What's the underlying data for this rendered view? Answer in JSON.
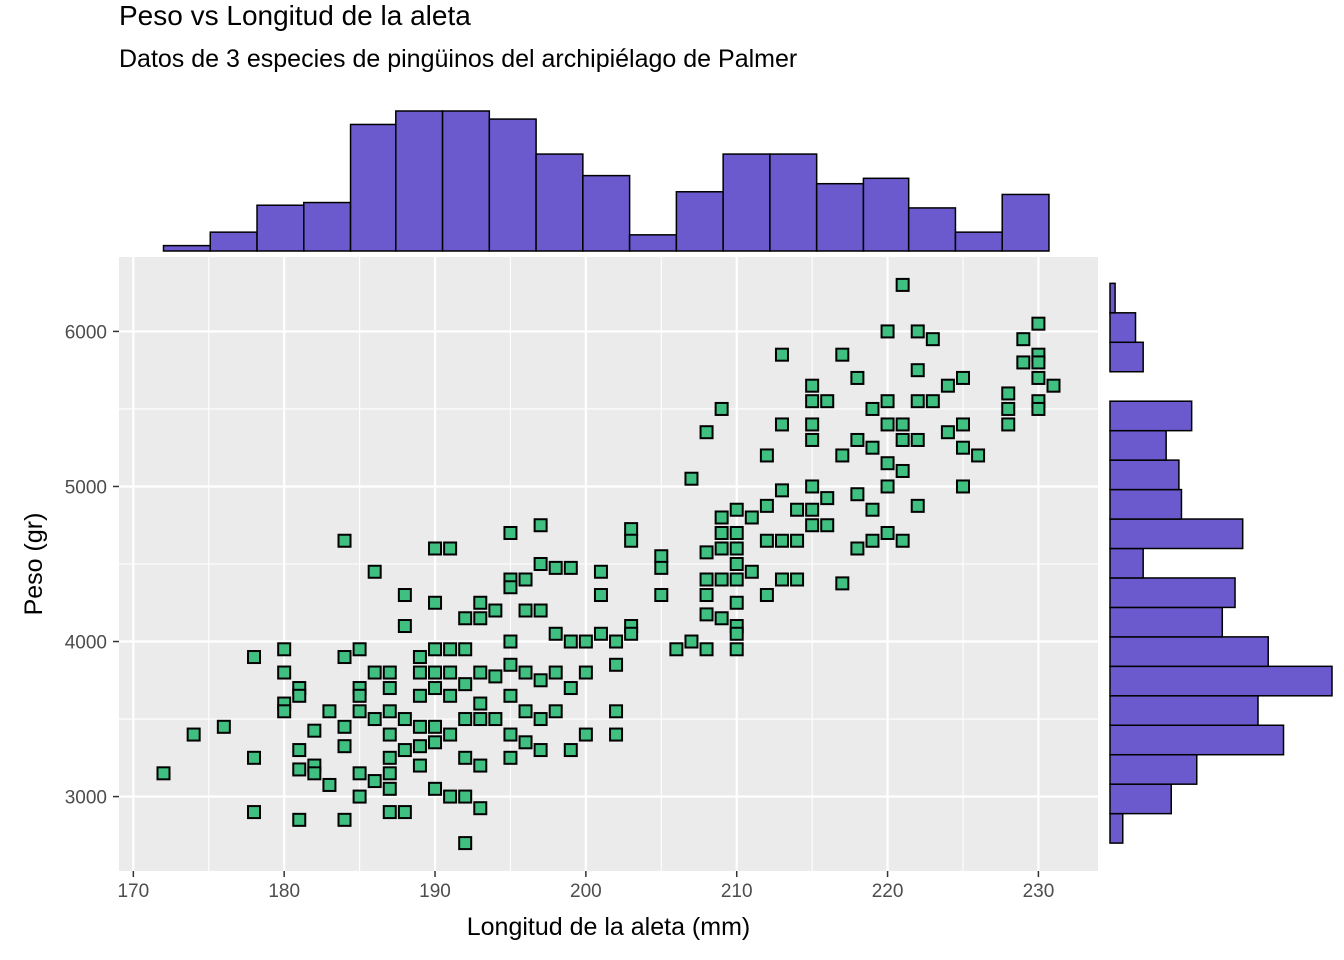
{
  "chart_data": {
    "type": "scatter",
    "title": "Peso vs Longitud de la aleta",
    "subtitle": "Datos de 3 especies de pingüinos del archipiélago de Palmer",
    "xlabel": "Longitud de la aleta (mm)",
    "ylabel": "Peso (gr)",
    "xlim": [
      169.05,
      233.95
    ],
    "ylim": [
      2520,
      6480
    ],
    "x_ticks": [
      "170",
      "180",
      "190",
      "200",
      "210",
      "220",
      "230"
    ],
    "y_ticks": [
      "3000",
      "4000",
      "5000",
      "6000"
    ],
    "grid": true,
    "colors": {
      "panel": "#EBEBEB",
      "grid": "#FFFFFF",
      "point_fill": "#3FBF80",
      "point_stroke": "#000000",
      "histogram_fill": "#6A5ACD",
      "histogram_stroke": "#000000",
      "axis_text": "#4D4D4D"
    },
    "marginal_x_histogram": {
      "bin_edges": [
        172.0,
        175.1,
        178.2,
        181.3,
        184.4,
        187.4,
        190.5,
        193.6,
        196.7,
        199.8,
        202.9,
        206.0,
        209.1,
        212.2,
        215.3,
        218.4,
        221.4,
        224.5,
        227.6,
        230.7
      ],
      "counts": [
        2,
        7,
        17,
        18,
        47,
        52,
        52,
        49,
        36,
        28,
        6,
        22,
        36,
        36,
        25,
        27,
        16,
        7,
        21
      ]
    },
    "marginal_y_histogram": {
      "bin_edges": [
        2700,
        2890,
        3080,
        3270,
        3460,
        3650,
        3840,
        4030,
        4220,
        4410,
        4600,
        4790,
        4980,
        5170,
        5360,
        5550,
        5740,
        5930,
        6120,
        6310
      ],
      "counts": [
        5,
        24,
        34,
        68,
        58,
        87,
        62,
        44,
        49,
        13,
        52,
        28,
        27,
        22,
        32,
        0,
        13,
        10,
        2
      ]
    },
    "points": [
      [
        172,
        3150
      ],
      [
        174,
        3400
      ],
      [
        176,
        3450
      ],
      [
        178,
        3900
      ],
      [
        178,
        3250
      ],
      [
        178,
        2900
      ],
      [
        180,
        3950
      ],
      [
        180,
        3800
      ],
      [
        180,
        3600
      ],
      [
        180,
        3550
      ],
      [
        181,
        3700
      ],
      [
        181,
        3650
      ],
      [
        181,
        3300
      ],
      [
        181,
        3175
      ],
      [
        181,
        2850
      ],
      [
        182,
        3200
      ],
      [
        182,
        3150
      ],
      [
        182,
        3425
      ],
      [
        183,
        3075
      ],
      [
        183,
        3550
      ],
      [
        184,
        3900
      ],
      [
        184,
        3450
      ],
      [
        184,
        3325
      ],
      [
        184,
        4650
      ],
      [
        184,
        2850
      ],
      [
        185,
        3950
      ],
      [
        185,
        3700
      ],
      [
        185,
        3650
      ],
      [
        185,
        3550
      ],
      [
        185,
        3150
      ],
      [
        185,
        3000
      ],
      [
        186,
        4450
      ],
      [
        186,
        3800
      ],
      [
        186,
        3500
      ],
      [
        186,
        3100
      ],
      [
        187,
        3800
      ],
      [
        187,
        3700
      ],
      [
        187,
        3550
      ],
      [
        187,
        3400
      ],
      [
        187,
        3250
      ],
      [
        187,
        3150
      ],
      [
        187,
        3050
      ],
      [
        187,
        2900
      ],
      [
        188,
        4300
      ],
      [
        188,
        4100
      ],
      [
        188,
        3500
      ],
      [
        188,
        3300
      ],
      [
        188,
        2900
      ],
      [
        189,
        3900
      ],
      [
        189,
        3800
      ],
      [
        189,
        3650
      ],
      [
        189,
        3450
      ],
      [
        189,
        3325
      ],
      [
        189,
        3200
      ],
      [
        190,
        4600
      ],
      [
        190,
        4250
      ],
      [
        190,
        3950
      ],
      [
        190,
        3800
      ],
      [
        190,
        3700
      ],
      [
        190,
        3450
      ],
      [
        190,
        3350
      ],
      [
        190,
        3050
      ],
      [
        191,
        4600
      ],
      [
        191,
        3950
      ],
      [
        191,
        3800
      ],
      [
        191,
        3650
      ],
      [
        191,
        3400
      ],
      [
        191,
        3000
      ],
      [
        192,
        4150
      ],
      [
        192,
        3950
      ],
      [
        192,
        3725
      ],
      [
        192,
        3500
      ],
      [
        192,
        3250
      ],
      [
        192,
        3000
      ],
      [
        192,
        2700
      ],
      [
        193,
        4250
      ],
      [
        193,
        4150
      ],
      [
        193,
        3800
      ],
      [
        193,
        3600
      ],
      [
        193,
        3500
      ],
      [
        193,
        3200
      ],
      [
        193,
        2925
      ],
      [
        194,
        4200
      ],
      [
        194,
        3775
      ],
      [
        194,
        3500
      ],
      [
        195,
        4700
      ],
      [
        195,
        4400
      ],
      [
        195,
        4350
      ],
      [
        195,
        4000
      ],
      [
        195,
        3850
      ],
      [
        195,
        3650
      ],
      [
        195,
        3400
      ],
      [
        195,
        3250
      ],
      [
        196,
        4400
      ],
      [
        196,
        4200
      ],
      [
        196,
        3800
      ],
      [
        196,
        3550
      ],
      [
        196,
        3350
      ],
      [
        197,
        4750
      ],
      [
        197,
        4500
      ],
      [
        197,
        4200
      ],
      [
        197,
        3750
      ],
      [
        197,
        3500
      ],
      [
        197,
        3300
      ],
      [
        198,
        4475
      ],
      [
        198,
        4050
      ],
      [
        198,
        3800
      ],
      [
        198,
        3550
      ],
      [
        199,
        4475
      ],
      [
        199,
        4000
      ],
      [
        199,
        3700
      ],
      [
        199,
        3300
      ],
      [
        200,
        4000
      ],
      [
        200,
        3800
      ],
      [
        200,
        3400
      ],
      [
        201,
        4450
      ],
      [
        201,
        4300
      ],
      [
        201,
        4050
      ],
      [
        202,
        4000
      ],
      [
        202,
        3850
      ],
      [
        202,
        3550
      ],
      [
        202,
        3400
      ],
      [
        203,
        4725
      ],
      [
        203,
        4650
      ],
      [
        203,
        4100
      ],
      [
        203,
        4050
      ],
      [
        205,
        4550
      ],
      [
        205,
        4475
      ],
      [
        205,
        4300
      ],
      [
        206,
        3950
      ],
      [
        207,
        5050
      ],
      [
        207,
        4000
      ],
      [
        208,
        5350
      ],
      [
        208,
        4575
      ],
      [
        208,
        4400
      ],
      [
        208,
        4300
      ],
      [
        208,
        4175
      ],
      [
        208,
        3950
      ],
      [
        209,
        5500
      ],
      [
        209,
        4800
      ],
      [
        209,
        4700
      ],
      [
        209,
        4600
      ],
      [
        209,
        4400
      ],
      [
        209,
        4150
      ],
      [
        210,
        4850
      ],
      [
        210,
        4700
      ],
      [
        210,
        4600
      ],
      [
        210,
        4500
      ],
      [
        210,
        4400
      ],
      [
        210,
        4250
      ],
      [
        210,
        4100
      ],
      [
        210,
        4050
      ],
      [
        210,
        3950
      ],
      [
        211,
        4800
      ],
      [
        211,
        4450
      ],
      [
        212,
        5200
      ],
      [
        212,
        4875
      ],
      [
        212,
        4650
      ],
      [
        212,
        4300
      ],
      [
        213,
        5850
      ],
      [
        213,
        5400
      ],
      [
        213,
        4975
      ],
      [
        213,
        4650
      ],
      [
        213,
        4400
      ],
      [
        214,
        4850
      ],
      [
        214,
        4650
      ],
      [
        214,
        4400
      ],
      [
        215,
        5650
      ],
      [
        215,
        5550
      ],
      [
        215,
        5400
      ],
      [
        215,
        5300
      ],
      [
        215,
        5000
      ],
      [
        215,
        4850
      ],
      [
        215,
        4750
      ],
      [
        216,
        5550
      ],
      [
        216,
        4925
      ],
      [
        216,
        4750
      ],
      [
        217,
        5850
      ],
      [
        217,
        5200
      ],
      [
        217,
        4375
      ],
      [
        218,
        5700
      ],
      [
        218,
        5300
      ],
      [
        218,
        4950
      ],
      [
        218,
        4600
      ],
      [
        219,
        5500
      ],
      [
        219,
        5250
      ],
      [
        219,
        4850
      ],
      [
        219,
        4650
      ],
      [
        220,
        6000
      ],
      [
        220,
        5550
      ],
      [
        220,
        5400
      ],
      [
        220,
        5150
      ],
      [
        220,
        5000
      ],
      [
        220,
        4700
      ],
      [
        221,
        6300
      ],
      [
        221,
        5400
      ],
      [
        221,
        5300
      ],
      [
        221,
        5100
      ],
      [
        221,
        4650
      ],
      [
        222,
        6000
      ],
      [
        222,
        5750
      ],
      [
        222,
        5550
      ],
      [
        222,
        5300
      ],
      [
        222,
        4875
      ],
      [
        223,
        5950
      ],
      [
        223,
        5550
      ],
      [
        224,
        5650
      ],
      [
        224,
        5350
      ],
      [
        225,
        5700
      ],
      [
        225,
        5400
      ],
      [
        225,
        5250
      ],
      [
        225,
        5000
      ],
      [
        226,
        5200
      ],
      [
        228,
        5600
      ],
      [
        228,
        5500
      ],
      [
        228,
        5400
      ],
      [
        229,
        5950
      ],
      [
        229,
        5800
      ],
      [
        230,
        6050
      ],
      [
        230,
        5850
      ],
      [
        230,
        5800
      ],
      [
        230,
        5700
      ],
      [
        230,
        5550
      ],
      [
        230,
        5500
      ],
      [
        231,
        5650
      ]
    ]
  }
}
